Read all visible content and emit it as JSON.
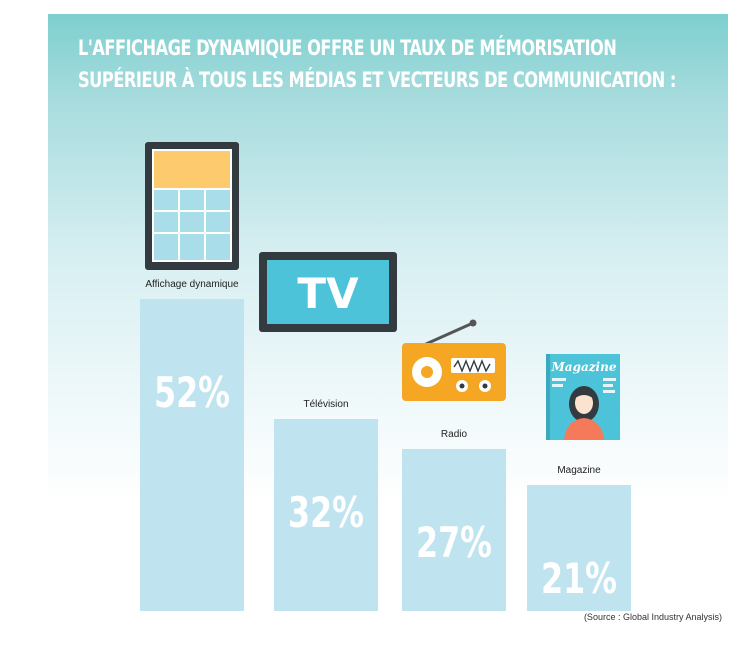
{
  "title_lines": [
    "L'AFFICHAGE DYNAMIQUE OFFRE UN TAUX DE MÉMORISATION",
    "SUPÉRIEUR À TOUS LES MÉDIAS ET VECTEURS DE COMMUNICATION :"
  ],
  "source": "(Source : Global Industry Analysis)",
  "chart_data": {
    "type": "bar",
    "categories": [
      "Affichage dynamique",
      "Télévision",
      "Radio",
      "Magazine"
    ],
    "values": [
      52,
      32,
      27,
      21
    ],
    "value_labels": [
      "52%",
      "32%",
      "27%",
      "21%"
    ],
    "icons": [
      "digital-signage-icon",
      "television-icon",
      "radio-icon",
      "magazine-icon"
    ],
    "icon_texts": {
      "television": "TV",
      "magazine": "Magazine"
    },
    "ylim": [
      0,
      52
    ],
    "grid": false,
    "colors": {
      "bar": "#bfe4ef",
      "value_text": "#ffffff",
      "accent": "#4cc3d9",
      "frame": "#333a40",
      "signage_top": "#fdcb6e",
      "radio_body": "#f5a623"
    }
  }
}
